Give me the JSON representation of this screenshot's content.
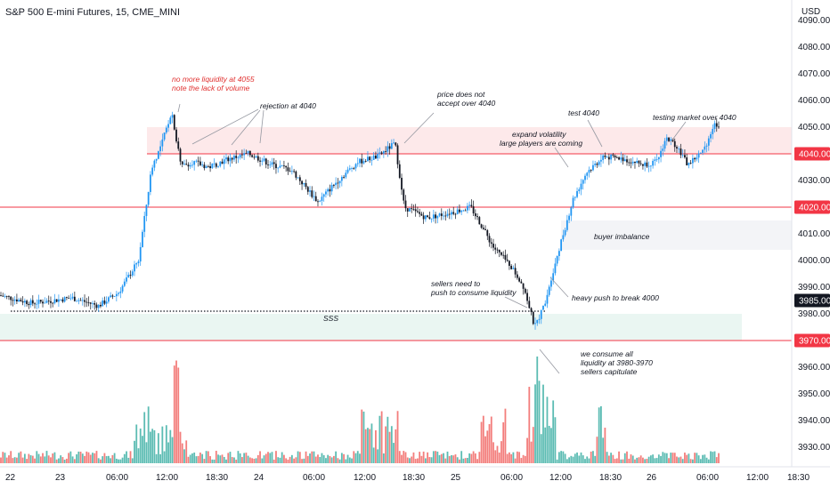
{
  "header": {
    "title": "S&P 500 E-mini Futures, 15, CME_MINI",
    "currency": "USD"
  },
  "colors": {
    "up": "#2196f3",
    "down": "#131722",
    "vol_up": "#26a69a",
    "vol_down": "#ef5350",
    "level_line": "#f23645",
    "resistance_zone": "#fde9ea",
    "buyer_zone": "#f3f4f7",
    "sss_zone": "#eaf6f2"
  },
  "chart_data": {
    "type": "candlestick",
    "symbol": "S&P 500 E-mini Futures",
    "interval": "15",
    "exchange": "CME_MINI",
    "y_axis": {
      "ylim": [
        3920,
        4093
      ],
      "ticks": [
        3930,
        3940,
        3950,
        3960,
        3970,
        3980,
        3990,
        4000,
        4010,
        4020,
        4030,
        4040,
        4050,
        4060,
        4070,
        4080,
        4090
      ],
      "tick_labels": [
        "3930.00",
        "3940.00",
        "3950.00",
        "3960.00",
        "3970.00",
        "3980.00",
        "3990.00",
        "4000.00",
        "4010.00",
        "4020.00",
        "4030.00",
        "4040.00",
        "4050.00",
        "4060.00",
        "4070.00",
        "4080.00",
        "4090.00"
      ]
    },
    "x_axis": {
      "ticks": [
        "22",
        "23",
        "06:00",
        "12:00",
        "18:30",
        "24",
        "06:00",
        "12:00",
        "18:30",
        "25",
        "06:00",
        "12:00",
        "18:30",
        "26",
        "06:00",
        "12:00",
        "18:30"
      ]
    },
    "price_tags": [
      {
        "value": 4040.0,
        "label": "4040.00",
        "color": "#f23645"
      },
      {
        "value": 4020.0,
        "label": "4020.00",
        "color": "#f23645"
      },
      {
        "value": 3985.0,
        "label": "3985.00",
        "color": "#131722"
      },
      {
        "value": 3970.0,
        "label": "3970.00",
        "color": "#f23645"
      }
    ],
    "levels": [
      4040,
      4020,
      3970
    ],
    "dotted_level": {
      "value": 3980,
      "label": "SSS"
    },
    "zones": [
      {
        "name": "resistance",
        "from": 4040,
        "to": 4050
      },
      {
        "name": "buyer imbalance",
        "from": 4004,
        "to": 4015
      },
      {
        "name": "sss",
        "from": 3970,
        "to": 3980
      }
    ],
    "price_path_anchors": [
      {
        "t": 0,
        "price": 3987
      },
      {
        "t": 25,
        "price": 3984
      },
      {
        "t": 55,
        "price": 3986
      },
      {
        "t": 75,
        "price": 3983
      },
      {
        "t": 90,
        "price": 3988
      },
      {
        "t": 105,
        "price": 4000
      },
      {
        "t": 115,
        "price": 4035
      },
      {
        "t": 122,
        "price": 4043
      },
      {
        "t": 130,
        "price": 4056
      },
      {
        "t": 137,
        "price": 4035
      },
      {
        "t": 145,
        "price": 4037
      },
      {
        "t": 158,
        "price": 4035
      },
      {
        "t": 172,
        "price": 4038
      },
      {
        "t": 188,
        "price": 4040
      },
      {
        "t": 205,
        "price": 4036
      },
      {
        "t": 220,
        "price": 4034
      },
      {
        "t": 240,
        "price": 4022
      },
      {
        "t": 255,
        "price": 4030
      },
      {
        "t": 270,
        "price": 4037
      },
      {
        "t": 285,
        "price": 4039
      },
      {
        "t": 298,
        "price": 4044
      },
      {
        "t": 305,
        "price": 4020
      },
      {
        "t": 322,
        "price": 4016
      },
      {
        "t": 340,
        "price": 4018
      },
      {
        "t": 355,
        "price": 4020
      },
      {
        "t": 362,
        "price": 4014
      },
      {
        "t": 372,
        "price": 4005
      },
      {
        "t": 385,
        "price": 3998
      },
      {
        "t": 395,
        "price": 3990
      },
      {
        "t": 403,
        "price": 3975
      },
      {
        "t": 410,
        "price": 3983
      },
      {
        "t": 420,
        "price": 4002
      },
      {
        "t": 432,
        "price": 4023
      },
      {
        "t": 442,
        "price": 4033
      },
      {
        "t": 455,
        "price": 4039
      },
      {
        "t": 470,
        "price": 4038
      },
      {
        "t": 485,
        "price": 4036
      },
      {
        "t": 495,
        "price": 4037
      },
      {
        "t": 502,
        "price": 4046
      },
      {
        "t": 510,
        "price": 4043
      },
      {
        "t": 518,
        "price": 4036
      },
      {
        "t": 530,
        "price": 4041
      },
      {
        "t": 538,
        "price": 4051
      }
    ],
    "annotations": [
      {
        "text": "no more liquidity at 4055",
        "color": "red"
      },
      {
        "text": "note the lack of volume",
        "color": "red"
      },
      {
        "text": "rejection at 4040",
        "color": "dark"
      },
      {
        "text": "price does not",
        "color": "dark"
      },
      {
        "text": "accept over 4040",
        "color": "dark"
      },
      {
        "text": "expand volatility",
        "color": "dark"
      },
      {
        "text": "large players are coming",
        "color": "dark"
      },
      {
        "text": "test 4040",
        "color": "dark"
      },
      {
        "text": "testing market over 4040",
        "color": "dark"
      },
      {
        "text": "buyer imbalance",
        "color": "dark"
      },
      {
        "text": "sellers need to",
        "color": "dark"
      },
      {
        "text": "push to consume liquidity",
        "color": "dark"
      },
      {
        "text": "heavy push to break 4000",
        "color": "dark"
      },
      {
        "text": "we consume all",
        "color": "dark"
      },
      {
        "text": "liquidity at 3980-3970",
        "color": "dark"
      },
      {
        "text": "sellers capitulate",
        "color": "dark"
      }
    ]
  }
}
